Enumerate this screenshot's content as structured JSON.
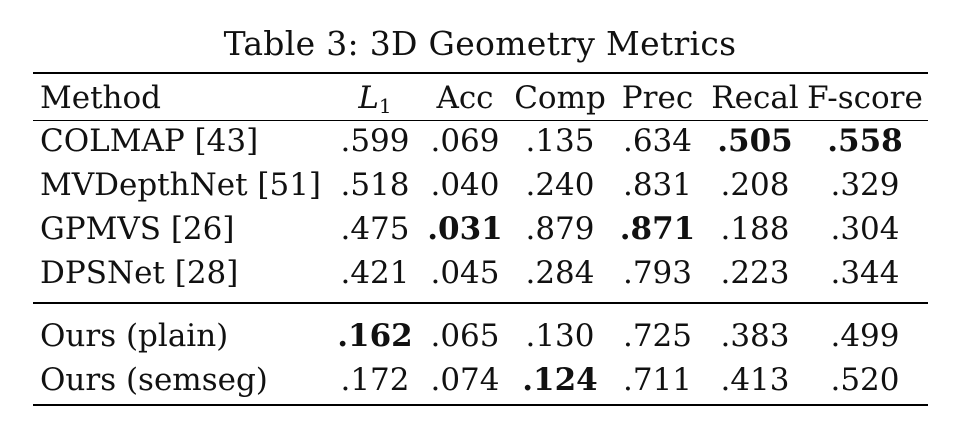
{
  "caption": "Table 3: 3D Geometry Metrics",
  "headers": {
    "method": "Method",
    "l1_main": "L",
    "l1_sub": "1",
    "acc": "Acc",
    "comp": "Comp",
    "prec": "Prec",
    "recal": "Recal",
    "fscore": "F-score"
  },
  "rows": [
    {
      "method": "COLMAP [43]",
      "l1": ".599",
      "acc": ".069",
      "comp": ".135",
      "prec": ".634",
      "recal": ".505",
      "fscore": ".558"
    },
    {
      "method": "MVDepthNet [51]",
      "l1": ".518",
      "acc": ".040",
      "comp": ".240",
      "prec": ".831",
      "recal": ".208",
      "fscore": ".329"
    },
    {
      "method": "GPMVS [26]",
      "l1": ".475",
      "acc": ".031",
      "comp": ".879",
      "prec": ".871",
      "recal": ".188",
      "fscore": ".304"
    },
    {
      "method": "DPSNet [28]",
      "l1": ".421",
      "acc": ".045",
      "comp": ".284",
      "prec": ".793",
      "recal": ".223",
      "fscore": ".344"
    },
    {
      "method": "Ours (plain)",
      "l1": ".162",
      "acc": ".065",
      "comp": ".130",
      "prec": ".725",
      "recal": ".383",
      "fscore": ".499"
    },
    {
      "method": "Ours (semseg)",
      "l1": ".172",
      "acc": ".074",
      "comp": ".124",
      "prec": ".711",
      "recal": ".413",
      "fscore": ".520"
    }
  ],
  "bold_cells": [
    "0.recal",
    "0.fscore",
    "2.acc",
    "2.prec",
    "4.l1",
    "5.comp"
  ]
}
